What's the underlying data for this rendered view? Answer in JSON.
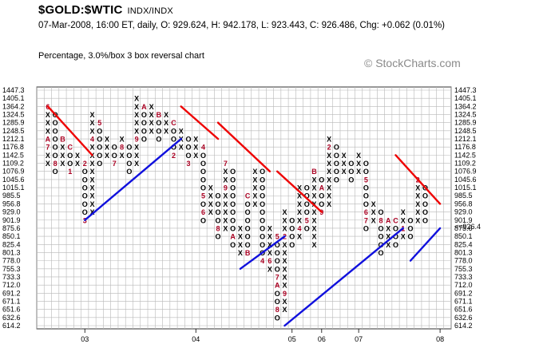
{
  "header": {
    "symbol": "$GOLD:$WTIC",
    "exchange": "INDX/INDX",
    "quote": "07-Mar-2008, 16:00 ET, daily, O: 929.624, H: 942.178, L: 923.443, C: 926.486, Chg: +0.062 (0.01%)",
    "chart_desc": "Percentage, 3.0%/box 3 box reversal chart",
    "watermark": "© StockCharts.com"
  },
  "colors": {
    "resistance": "#ee0000",
    "support": "#1010dd",
    "month_marker": "#aa0022",
    "current_price": "#cc0033",
    "grid": "#b8b8b8"
  },
  "chart_data": {
    "type": "point-and-figure",
    "box_size_pct": 3.0,
    "reversal": 3,
    "price_levels": [
      1447.3,
      1405.1,
      1364.2,
      1324.5,
      1285.9,
      1248.5,
      1212.1,
      1176.8,
      1142.5,
      1109.2,
      1076.9,
      1045.6,
      1015.1,
      985.5,
      956.8,
      929.0,
      901.9,
      875.6,
      850.1,
      825.4,
      801.3,
      778.0,
      755.3,
      733.3,
      712.0,
      691.2,
      671.1,
      651.6,
      632.6,
      614.2
    ],
    "current_price_label": "<<926.4",
    "current_level": 901.9,
    "year_labels": [
      "03",
      "04",
      "05",
      "06",
      "07",
      "08"
    ],
    "columns": [
      {
        "t": "X",
        "from": 1109.2,
        "to": 1364.2,
        "m": {
          "1364.2": "6",
          "1212.1": "A",
          "1176.8": "7"
        }
      },
      {
        "t": "O",
        "from": 1076.9,
        "to": 1324.5,
        "m": {
          "1109.2": "8"
        }
      },
      {
        "t": "X",
        "from": 1109.2,
        "to": 1212.1,
        "m": {
          "1212.1": "B"
        }
      },
      {
        "t": "O",
        "from": 1076.9,
        "to": 1176.8,
        "m": {
          "1176.8": "C",
          "1076.9": "1"
        }
      },
      {
        "t": "X",
        "from": 1109.2,
        "to": 1142.5,
        "m": {}
      },
      {
        "t": "O",
        "from": 901.9,
        "to": 1109.2,
        "m": {
          "1109.2": "2",
          "901.9": "3"
        }
      },
      {
        "t": "X",
        "from": 929.0,
        "to": 1324.5,
        "m": {
          "1212.1": "4"
        }
      },
      {
        "t": "O",
        "from": 1109.2,
        "to": 1285.9,
        "m": {
          "1285.9": "5"
        }
      },
      {
        "t": "X",
        "from": 1142.5,
        "to": 1212.1,
        "m": {}
      },
      {
        "t": "O",
        "from": 1109.2,
        "to": 1176.8,
        "m": {
          "1109.2": "7"
        }
      },
      {
        "t": "X",
        "from": 1142.5,
        "to": 1212.1,
        "m": {
          "1176.8": "8"
        }
      },
      {
        "t": "O",
        "from": 1076.9,
        "to": 1176.8,
        "m": {}
      },
      {
        "t": "X",
        "from": 1109.2,
        "to": 1405.1,
        "m": {
          "1212.1": "9"
        }
      },
      {
        "t": "O",
        "from": 1212.1,
        "to": 1364.2,
        "m": {
          "1364.2": "A"
        }
      },
      {
        "t": "X",
        "from": 1248.5,
        "to": 1364.2,
        "m": {}
      },
      {
        "t": "O",
        "from": 1212.1,
        "to": 1324.5,
        "m": {
          "1324.5": "B"
        }
      },
      {
        "t": "X",
        "from": 1248.5,
        "to": 1324.5,
        "m": {}
      },
      {
        "t": "O",
        "from": 1142.5,
        "to": 1285.9,
        "m": {
          "1285.9": "C",
          "1142.5": "2"
        }
      },
      {
        "t": "X",
        "from": 1176.8,
        "to": 1248.5,
        "m": {}
      },
      {
        "t": "O",
        "from": 1109.2,
        "to": 1212.1,
        "m": {
          "1109.2": "3"
        }
      },
      {
        "t": "X",
        "from": 1142.5,
        "to": 1212.1,
        "m": {}
      },
      {
        "t": "O",
        "from": 901.9,
        "to": 1176.8,
        "m": {
          "1176.8": "4",
          "985.5": "5",
          "929.0": "6"
        }
      },
      {
        "t": "X",
        "from": 929.0,
        "to": 1015.1,
        "m": {}
      },
      {
        "t": "O",
        "from": 850.1,
        "to": 985.5,
        "m": {
          "875.6": "8"
        }
      },
      {
        "t": "X",
        "from": 875.6,
        "to": 1109.2,
        "m": {
          "1109.2": "7",
          "1015.1": "9"
        }
      },
      {
        "t": "O",
        "from": 825.4,
        "to": 1076.9,
        "m": {
          "850.1": "A"
        }
      },
      {
        "t": "X",
        "from": 801.3,
        "to": 875.6,
        "m": {}
      },
      {
        "t": "O",
        "from": 801.3,
        "to": 985.5,
        "m": {
          "985.5": "C",
          "801.3": "B"
        }
      },
      {
        "t": "X",
        "from": 956.8,
        "to": 1076.9,
        "m": {}
      },
      {
        "t": "O",
        "from": 778.0,
        "to": 1076.9,
        "m": {
          "778.0": "4"
        }
      },
      {
        "t": "X",
        "from": 755.3,
        "to": 875.6,
        "m": {
          "778.0": "6"
        }
      },
      {
        "t": "O",
        "from": 632.6,
        "to": 850.1,
        "m": {
          "850.1": "5",
          "733.3": "7",
          "712.0": "A",
          "651.6": "8"
        }
      },
      {
        "t": "X",
        "from": 651.6,
        "to": 929.0,
        "m": {
          "691.2": "9",
          "850.1": "2"
        }
      },
      {
        "t": "O",
        "from": 825.4,
        "to": 901.9,
        "m": {}
      },
      {
        "t": "X",
        "from": 850.1,
        "to": 1015.1,
        "m": {
          "875.6": "4"
        }
      },
      {
        "t": "O",
        "from": 875.6,
        "to": 1015.1,
        "m": {
          "901.9": "5"
        }
      },
      {
        "t": "X",
        "from": 825.4,
        "to": 1076.9,
        "m": {
          "1076.9": "B"
        }
      },
      {
        "t": "O",
        "from": 929.0,
        "to": 1045.6,
        "m": {
          "1015.1": "A",
          "929.0": "9"
        }
      },
      {
        "t": "X",
        "from": 956.8,
        "to": 1212.1,
        "m": {
          "1176.8": "2"
        }
      },
      {
        "t": "O",
        "from": 1045.6,
        "to": 1176.8,
        "m": {}
      },
      {
        "t": "X",
        "from": 1076.9,
        "to": 1142.5,
        "m": {
          "1045.6": "3"
        }
      },
      {
        "t": "O",
        "from": 1045.6,
        "to": 1109.2,
        "m": {}
      },
      {
        "t": "X",
        "from": 1076.9,
        "to": 1142.5,
        "m": {
          "1045.6": "4"
        }
      },
      {
        "t": "O",
        "from": 875.6,
        "to": 1109.2,
        "m": {
          "1045.6": "5",
          "929.0": "6",
          "901.9": "7"
        }
      },
      {
        "t": "X",
        "from": 901.9,
        "to": 956.8,
        "m": {}
      },
      {
        "t": "O",
        "from": 801.3,
        "to": 929.0,
        "m": {
          "901.9": "8"
        }
      },
      {
        "t": "X",
        "from": 825.4,
        "to": 901.9,
        "m": {
          "901.9": "A"
        }
      },
      {
        "t": "O",
        "from": 825.4,
        "to": 901.9,
        "m": {
          "901.9": "C"
        }
      },
      {
        "t": "X",
        "from": 850.1,
        "to": 929.0,
        "m": {
          "875.6": "1"
        }
      },
      {
        "t": "O",
        "from": 850.1,
        "to": 901.9,
        "m": {}
      },
      {
        "t": "X",
        "from": 901.9,
        "to": 1045.6,
        "m": {
          "1045.6": "2"
        }
      },
      {
        "t": "O",
        "from": 901.9,
        "to": 1015.1,
        "m": {}
      }
    ],
    "trendlines": [
      {
        "type": "resistance",
        "from": {
          "col": 0,
          "price": 1364.2
        },
        "to": {
          "col": 6,
          "price": 1142.5
        }
      },
      {
        "type": "support",
        "from": {
          "col": 5,
          "price": 901.9
        },
        "to": {
          "col": 18,
          "price": 1212.1
        }
      },
      {
        "type": "resistance",
        "from": {
          "col": 18,
          "price": 1364.2
        },
        "to": {
          "col": 23,
          "price": 1212.1
        }
      },
      {
        "type": "resistance",
        "from": {
          "col": 23,
          "price": 1285.9
        },
        "to": {
          "col": 30,
          "price": 1076.9
        }
      },
      {
        "type": "support",
        "from": {
          "col": 26,
          "price": 755.3
        },
        "to": {
          "col": 32,
          "price": 850.1
        }
      },
      {
        "type": "resistance",
        "from": {
          "col": 31,
          "price": 1076.9
        },
        "to": {
          "col": 37,
          "price": 929.0
        }
      },
      {
        "type": "support",
        "from": {
          "col": 32,
          "price": 614.2
        },
        "to": {
          "col": 48,
          "price": 875.6
        }
      },
      {
        "type": "resistance",
        "from": {
          "col": 47,
          "price": 1142.5
        },
        "to": {
          "col": 53,
          "price": 956.8
        }
      },
      {
        "type": "support",
        "from": {
          "col": 49,
          "price": 778.0
        },
        "to": {
          "col": 53,
          "price": 875.6
        }
      }
    ]
  }
}
